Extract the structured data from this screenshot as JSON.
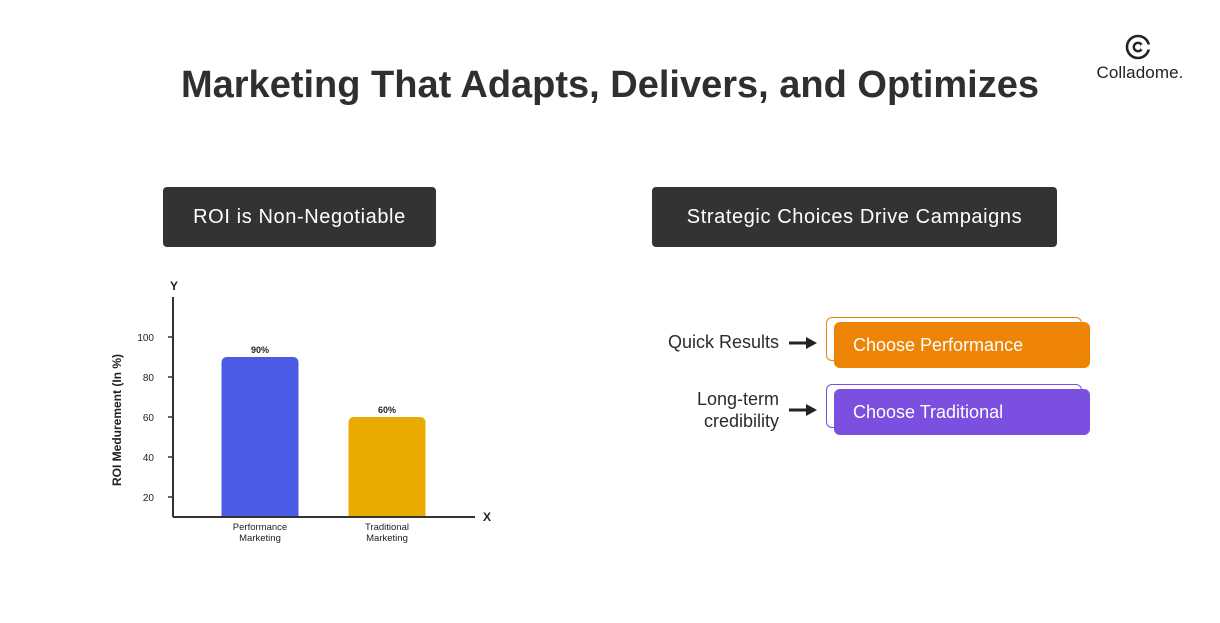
{
  "brand": {
    "name": "Colladome."
  },
  "title": "Marketing That Adapts, Delivers, and Optimizes",
  "left_panel": {
    "heading": "ROI is Non-Negotiable"
  },
  "right_panel": {
    "heading": "Strategic Choices Drive Campaigns",
    "choices": [
      {
        "label": "Quick Results",
        "action": "Choose Performance",
        "color": "#EE8406"
      },
      {
        "label": "Long-term\ncredibility",
        "action": "Choose Traditional",
        "color": "#7B4FE0"
      }
    ]
  },
  "chart_data": {
    "type": "bar",
    "categories": [
      "Performance\nMarketing",
      "Traditional\nMarketing"
    ],
    "values": [
      90,
      60
    ],
    "data_labels": [
      "90%",
      "60%"
    ],
    "colors": [
      "#4A5CE6",
      "#E9AB00"
    ],
    "xlabel": "X",
    "ylabel": "ROI Medurement (In %)",
    "y_axis_letter": "Y",
    "yticks": [
      20,
      40,
      60,
      80,
      100
    ],
    "ylim": [
      10,
      120
    ],
    "grid": false,
    "legend": "none"
  }
}
